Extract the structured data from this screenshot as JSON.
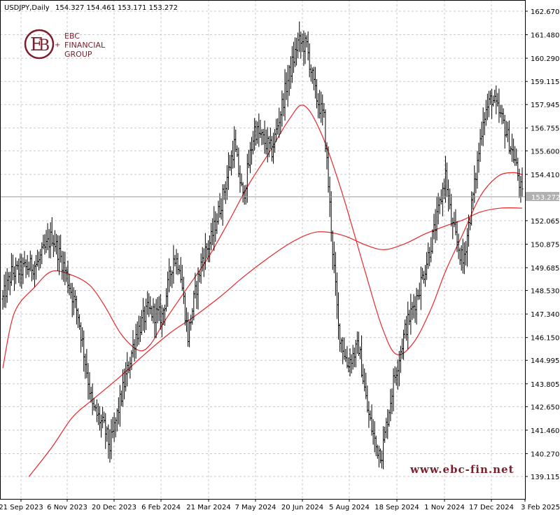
{
  "header": {
    "symbol": "USDJPY,Daily",
    "ohlc": "154.327 154.461 153.171 153.272"
  },
  "logo": {
    "line1": "EBC",
    "line2": "FINANCIAL",
    "line3": "GROUP",
    "color": "#7a1f2b"
  },
  "watermark": "www.ebc-fin.net",
  "colors": {
    "candles": "#000000",
    "ma_fast": "#e8262a",
    "ma_slow": "#e8262a",
    "grid": "#c8c8c8",
    "current_tag": "#b0b0b0"
  },
  "chart_data": {
    "type": "line",
    "title": "USDJPY,Daily",
    "ylim": [
      139.115,
      162.67
    ],
    "y_ticks": [
      "162.670",
      "161.480",
      "160.290",
      "159.115",
      "157.945",
      "156.755",
      "155.600",
      "154.410",
      "153.272",
      "152.065",
      "150.875",
      "149.685",
      "148.530",
      "147.340",
      "146.150",
      "144.995",
      "143.805",
      "142.650",
      "141.460",
      "140.270",
      "139.115"
    ],
    "x_ticks": [
      "21 Sep 2023",
      "6 Nov 2023",
      "20 Dec 2023",
      "6 Feb 2024",
      "21 Mar 2024",
      "7 May 2024",
      "20 Jun 2024",
      "5 Aug 2024",
      "18 Sep 2024",
      "1 Nov 2024",
      "17 Dec 2024",
      "3 Feb 2025"
    ],
    "current_price": "153.272",
    "grid": true,
    "price_series": {
      "name": "",
      "bars": 360,
      "anchors": [
        [
          0,
          148.1
        ],
        [
          6,
          149.4
        ],
        [
          14,
          149.6
        ],
        [
          24,
          149.9
        ],
        [
          34,
          151.3
        ],
        [
          42,
          149.8
        ],
        [
          52,
          147.3
        ],
        [
          62,
          142.6
        ],
        [
          70,
          141.6
        ],
        [
          74,
          140.6
        ],
        [
          82,
          143.2
        ],
        [
          92,
          146.3
        ],
        [
          100,
          147.5
        ],
        [
          110,
          147.2
        ],
        [
          118,
          150.2
        ],
        [
          122,
          149.9
        ],
        [
          128,
          146.2
        ],
        [
          132,
          148.0
        ],
        [
          138,
          150.2
        ],
        [
          144,
          151.1
        ],
        [
          152,
          153.3
        ],
        [
          160,
          155.9
        ],
        [
          166,
          153.2
        ],
        [
          174,
          156.7
        ],
        [
          186,
          155.6
        ],
        [
          196,
          158.9
        ],
        [
          204,
          161.1
        ],
        [
          210,
          160.9
        ],
        [
          216,
          158.5
        ],
        [
          222,
          157.2
        ],
        [
          228,
          150.6
        ],
        [
          232,
          146.6
        ],
        [
          238,
          144.8
        ],
        [
          246,
          145.7
        ],
        [
          252,
          142.5
        ],
        [
          258,
          140.6
        ],
        [
          262,
          140.3
        ],
        [
          270,
          143.9
        ],
        [
          278,
          146.5
        ],
        [
          286,
          148.2
        ],
        [
          292,
          149.7
        ],
        [
          300,
          152.1
        ],
        [
          306,
          154.4
        ],
        [
          310,
          152.0
        ],
        [
          318,
          149.9
        ],
        [
          326,
          153.8
        ],
        [
          332,
          157.3
        ],
        [
          338,
          158.3
        ],
        [
          346,
          157.0
        ],
        [
          354,
          155.1
        ],
        [
          359,
          153.27
        ]
      ]
    },
    "ma_fast": {
      "name": "",
      "points": [
        [
          0,
          144.6
        ],
        [
          8,
          147.4
        ],
        [
          22,
          148.7
        ],
        [
          34,
          149.5
        ],
        [
          48,
          149.3
        ],
        [
          60,
          148.8
        ],
        [
          70,
          147.8
        ],
        [
          82,
          146.3
        ],
        [
          94,
          145.5
        ],
        [
          102,
          145.8
        ],
        [
          112,
          147.0
        ],
        [
          126,
          148.5
        ],
        [
          142,
          150.2
        ],
        [
          156,
          152.0
        ],
        [
          170,
          153.9
        ],
        [
          184,
          155.5
        ],
        [
          198,
          157.2
        ],
        [
          208,
          157.9
        ],
        [
          220,
          156.5
        ],
        [
          234,
          153.6
        ],
        [
          250,
          149.6
        ],
        [
          262,
          146.7
        ],
        [
          272,
          145.3
        ],
        [
          284,
          145.9
        ],
        [
          296,
          147.6
        ],
        [
          306,
          149.5
        ],
        [
          318,
          151.4
        ],
        [
          330,
          153.3
        ],
        [
          342,
          154.3
        ],
        [
          352,
          154.5
        ],
        [
          359,
          154.4
        ]
      ]
    },
    "ma_slow": {
      "name": "",
      "points": [
        [
          18,
          139.1
        ],
        [
          34,
          140.6
        ],
        [
          48,
          142.1
        ],
        [
          62,
          143.0
        ],
        [
          80,
          144.1
        ],
        [
          98,
          145.3
        ],
        [
          116,
          146.4
        ],
        [
          132,
          147.2
        ],
        [
          150,
          148.2
        ],
        [
          166,
          149.2
        ],
        [
          182,
          150.1
        ],
        [
          198,
          150.9
        ],
        [
          212,
          151.4
        ],
        [
          222,
          151.5
        ],
        [
          236,
          151.3
        ],
        [
          252,
          150.8
        ],
        [
          264,
          150.6
        ],
        [
          278,
          150.9
        ],
        [
          292,
          151.4
        ],
        [
          306,
          151.8
        ],
        [
          318,
          152.1
        ],
        [
          330,
          152.5
        ],
        [
          344,
          152.7
        ],
        [
          359,
          152.7
        ]
      ]
    }
  }
}
